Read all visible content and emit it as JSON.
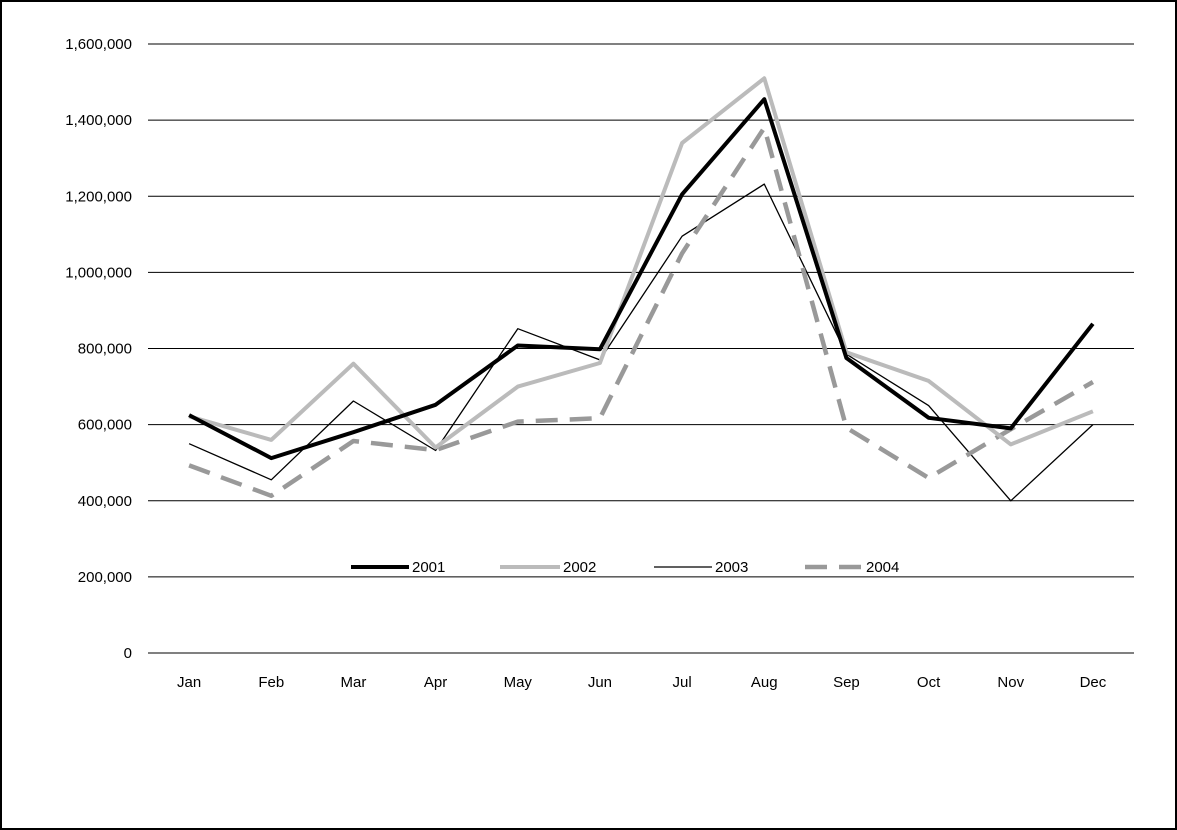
{
  "chart_data": {
    "type": "line",
    "title": "",
    "xlabel": "",
    "ylabel": "",
    "categories": [
      "Jan",
      "Feb",
      "Mar",
      "Apr",
      "May",
      "Jun",
      "Jul",
      "Aug",
      "Sep",
      "Oct",
      "Nov",
      "Dec"
    ],
    "ylim": [
      0,
      1600000
    ],
    "yticks": [
      0,
      200000,
      400000,
      600000,
      800000,
      1000000,
      1200000,
      1400000,
      1600000
    ],
    "ytick_labels": [
      "0",
      "200,000",
      "400,000",
      "600,000",
      "800,000",
      "1,000,000",
      "1,200,000",
      "1,400,000",
      "1,600,000"
    ],
    "grid": "horizontal",
    "legend_position": "inside-bottom-center",
    "series": [
      {
        "name": "2001",
        "color": "#000000",
        "style": "solid-thick",
        "values": [
          625000,
          512000,
          580000,
          652000,
          808000,
          798000,
          1205000,
          1455000,
          775000,
          618000,
          590000,
          865000
        ]
      },
      {
        "name": "2002",
        "color": "#bbbbbb",
        "style": "solid-thick",
        "values": [
          622000,
          560000,
          760000,
          540000,
          700000,
          762000,
          1340000,
          1510000,
          790000,
          715000,
          548000,
          635000
        ]
      },
      {
        "name": "2003",
        "color": "#000000",
        "style": "solid-thin",
        "values": [
          550000,
          455000,
          662000,
          532000,
          852000,
          770000,
          1095000,
          1232000,
          785000,
          650000,
          400000,
          600000
        ]
      },
      {
        "name": "2004",
        "color": "#999999",
        "style": "dashed-thick",
        "values": [
          493000,
          413000,
          557000,
          533000,
          608000,
          617000,
          1050000,
          1380000,
          592000,
          460000,
          588000,
          712000
        ]
      }
    ]
  }
}
